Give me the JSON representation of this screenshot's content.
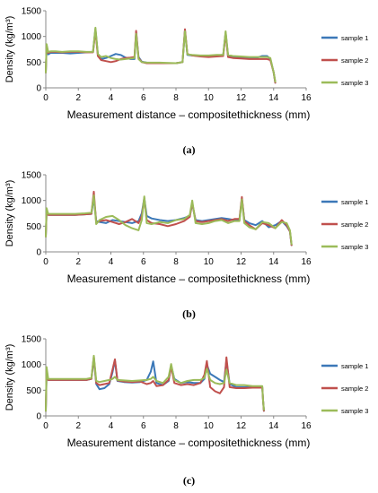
{
  "figure": {
    "captions": [
      "(a)",
      "(b)",
      "(c)"
    ]
  },
  "colors": {
    "sample1": "#3b78b8",
    "sample2": "#c0504d",
    "sample3": "#9bbb59",
    "axis": "#888888"
  },
  "chart_data": [
    {
      "type": "line",
      "title": "",
      "xlabel": "Measurement distance – compositethickness (mm)",
      "ylabel": "Density (kg/m³)",
      "xlim": [
        0,
        16
      ],
      "ylim": [
        0,
        1500
      ],
      "xticks": [
        "0",
        "2",
        "4",
        "6",
        "8",
        "10",
        "12",
        "14",
        "16"
      ],
      "yticks": [
        "0",
        "500",
        "1000",
        "1500"
      ],
      "legend_position": "right",
      "series": [
        {
          "name": "sample 1",
          "x": [
            0,
            0.05,
            0.15,
            0.3,
            0.6,
            1,
            1.5,
            2,
            2.5,
            2.9,
            3.05,
            3.2,
            3.4,
            3.7,
            4.0,
            4.3,
            4.6,
            4.9,
            5.2,
            5.45,
            5.55,
            5.7,
            5.9,
            6.2,
            7,
            8,
            8.4,
            8.55,
            8.7,
            9,
            9.5,
            10,
            10.5,
            10.9,
            11.05,
            11.2,
            11.5,
            12,
            12.5,
            13,
            13.3,
            13.6,
            13.8,
            14.0,
            14.1
          ],
          "y": [
            300,
            800,
            650,
            680,
            680,
            680,
            670,
            680,
            690,
            700,
            1150,
            650,
            560,
            580,
            620,
            660,
            640,
            590,
            560,
            560,
            1080,
            600,
            510,
            490,
            480,
            480,
            500,
            1120,
            640,
            630,
            620,
            620,
            630,
            640,
            1080,
            620,
            600,
            590,
            580,
            590,
            620,
            620,
            560,
            300,
            100
          ]
        },
        {
          "name": "sample 2",
          "x": [
            0,
            0.05,
            0.15,
            0.3,
            0.6,
            1,
            1.5,
            2,
            2.5,
            2.9,
            3.05,
            3.2,
            3.4,
            3.7,
            4.0,
            4.3,
            4.6,
            4.9,
            5.2,
            5.45,
            5.55,
            5.7,
            5.9,
            6.2,
            7,
            8,
            8.4,
            8.55,
            8.7,
            9,
            9.5,
            10,
            10.5,
            10.9,
            11.05,
            11.2,
            11.5,
            12,
            12.5,
            13,
            13.3,
            13.6,
            13.8,
            14.0,
            14.1
          ],
          "y": [
            300,
            820,
            680,
            700,
            700,
            690,
            700,
            700,
            690,
            690,
            1120,
            620,
            540,
            520,
            500,
            520,
            560,
            580,
            590,
            600,
            1110,
            580,
            500,
            480,
            480,
            480,
            500,
            1140,
            660,
            630,
            610,
            600,
            610,
            620,
            1060,
            600,
            580,
            570,
            560,
            560,
            560,
            560,
            540,
            300,
            100
          ]
        },
        {
          "name": "sample 3",
          "x": [
            0,
            0.05,
            0.15,
            0.3,
            0.6,
            1,
            1.5,
            2,
            2.5,
            2.9,
            3.05,
            3.2,
            3.4,
            3.7,
            4.0,
            4.3,
            4.6,
            4.9,
            5.2,
            5.45,
            5.55,
            5.7,
            5.9,
            6.2,
            7,
            8,
            8.4,
            8.55,
            8.7,
            9,
            9.5,
            10,
            10.5,
            10.9,
            11.05,
            11.2,
            11.5,
            12,
            12.5,
            13,
            13.3,
            13.6,
            13.8,
            14.0,
            14.1
          ],
          "y": [
            300,
            850,
            700,
            710,
            710,
            700,
            710,
            710,
            700,
            700,
            1170,
            660,
            600,
            620,
            580,
            560,
            550,
            560,
            570,
            580,
            1050,
            560,
            500,
            490,
            490,
            480,
            500,
            1100,
            650,
            640,
            630,
            630,
            640,
            640,
            1100,
            640,
            620,
            610,
            600,
            600,
            600,
            600,
            580,
            300,
            120
          ]
        }
      ]
    },
    {
      "type": "line",
      "title": "",
      "xlabel": "Measurement distance – compositethickness (mm)",
      "ylabel": "Density (kg/m³)",
      "xlim": [
        0,
        16
      ],
      "ylim": [
        0,
        1500
      ],
      "xticks": [
        "0",
        "2",
        "4",
        "6",
        "8",
        "10",
        "12",
        "14",
        "16"
      ],
      "yticks": [
        "0",
        "500",
        "1000",
        "1500"
      ],
      "legend_position": "right",
      "series": [
        {
          "name": "sample 1",
          "x": [
            0,
            0.05,
            0.15,
            0.3,
            0.7,
            1.2,
            1.8,
            2.4,
            2.8,
            2.95,
            3.1,
            3.3,
            3.7,
            4.1,
            4.5,
            4.9,
            5.3,
            5.7,
            5.9,
            6.05,
            6.2,
            6.5,
            7,
            7.5,
            8,
            8.5,
            8.85,
            9,
            9.2,
            9.6,
            10,
            10.4,
            10.8,
            11.2,
            11.6,
            11.9,
            12.05,
            12.2,
            12.5,
            12.9,
            13.3,
            13.7,
            14.1,
            14.5,
            14.8,
            15.0,
            15.1
          ],
          "y": [
            300,
            820,
            720,
            720,
            720,
            720,
            720,
            730,
            740,
            1050,
            600,
            580,
            560,
            620,
            600,
            580,
            560,
            600,
            750,
            1050,
            700,
            650,
            620,
            600,
            620,
            660,
            700,
            940,
            620,
            600,
            620,
            640,
            660,
            640,
            620,
            620,
            1040,
            620,
            560,
            520,
            600,
            480,
            520,
            600,
            500,
            400,
            130
          ]
        },
        {
          "name": "sample 2",
          "x": [
            0,
            0.05,
            0.15,
            0.3,
            0.7,
            1.2,
            1.8,
            2.4,
            2.8,
            2.95,
            3.1,
            3.3,
            3.7,
            4.1,
            4.5,
            4.9,
            5.3,
            5.7,
            5.9,
            6.05,
            6.2,
            6.5,
            7,
            7.5,
            8,
            8.5,
            8.85,
            9,
            9.2,
            9.6,
            10,
            10.4,
            10.8,
            11.2,
            11.6,
            11.9,
            12.05,
            12.2,
            12.5,
            12.9,
            13.3,
            13.7,
            14.1,
            14.5,
            14.8,
            15.0,
            15.1
          ],
          "y": [
            300,
            780,
            720,
            720,
            720,
            720,
            720,
            730,
            740,
            1170,
            560,
            600,
            620,
            580,
            540,
            580,
            640,
            560,
            700,
            1030,
            620,
            560,
            540,
            500,
            540,
            600,
            680,
            960,
            600,
            580,
            600,
            620,
            640,
            600,
            640,
            640,
            1070,
            600,
            520,
            440,
            560,
            520,
            460,
            620,
            520,
            400,
            130
          ]
        },
        {
          "name": "sample 3",
          "x": [
            0,
            0.05,
            0.15,
            0.3,
            0.7,
            1.2,
            1.8,
            2.4,
            2.8,
            2.95,
            3.1,
            3.3,
            3.7,
            4.1,
            4.5,
            4.9,
            5.3,
            5.7,
            5.9,
            6.05,
            6.2,
            6.5,
            7,
            7.5,
            8,
            8.5,
            8.85,
            9,
            9.2,
            9.6,
            10,
            10.4,
            10.8,
            11.2,
            11.6,
            11.9,
            12.05,
            12.2,
            12.5,
            12.9,
            13.3,
            13.7,
            14.1,
            14.5,
            14.8,
            15.0,
            15.1
          ],
          "y": [
            300,
            850,
            740,
            740,
            740,
            740,
            740,
            750,
            760,
            1100,
            540,
            620,
            680,
            700,
            620,
            520,
            460,
            420,
            620,
            1080,
            560,
            540,
            580,
            560,
            620,
            640,
            720,
            1000,
            560,
            540,
            560,
            600,
            620,
            560,
            600,
            600,
            1020,
            560,
            480,
            440,
            580,
            560,
            460,
            580,
            560,
            420,
            150
          ]
        }
      ]
    },
    {
      "type": "line",
      "title": "",
      "xlabel": "Measurement distance – compositethickness (mm)",
      "ylabel": "Density (kg/m³)",
      "xlim": [
        0,
        16
      ],
      "ylim": [
        0,
        1500
      ],
      "xticks": [
        "0",
        "2",
        "4",
        "6",
        "8",
        "10",
        "12",
        "14",
        "16"
      ],
      "yticks": [
        "0",
        "500",
        "1000",
        "1500"
      ],
      "legend_position": "right",
      "series": [
        {
          "name": "sample 1",
          "x": [
            0,
            0.05,
            0.15,
            0.3,
            0.7,
            1.3,
            2,
            2.5,
            2.8,
            2.95,
            3.1,
            3.3,
            3.6,
            3.9,
            4.1,
            4.25,
            4.4,
            4.8,
            5.3,
            5.8,
            6.2,
            6.45,
            6.6,
            6.8,
            7.2,
            7.55,
            7.7,
            7.9,
            8.3,
            8.7,
            9.1,
            9.5,
            9.75,
            9.9,
            10.1,
            10.4,
            10.7,
            10.95,
            11.1,
            11.3,
            11.7,
            12.2,
            12.7,
            13.1,
            13.3,
            13.35,
            13.4
          ],
          "y": [
            100,
            850,
            700,
            700,
            700,
            700,
            700,
            700,
            720,
            1130,
            620,
            520,
            540,
            620,
            850,
            1080,
            680,
            660,
            650,
            660,
            700,
            860,
            1060,
            640,
            600,
            680,
            980,
            720,
            640,
            660,
            640,
            640,
            720,
            1000,
            820,
            760,
            700,
            660,
            1080,
            620,
            560,
            560,
            560,
            560,
            560,
            300,
            100
          ]
        },
        {
          "name": "sample 2",
          "x": [
            0,
            0.05,
            0.15,
            0.3,
            0.7,
            1.3,
            2,
            2.5,
            2.8,
            2.95,
            3.1,
            3.3,
            3.6,
            3.9,
            4.1,
            4.25,
            4.4,
            4.8,
            5.3,
            5.8,
            6.2,
            6.45,
            6.6,
            6.8,
            7.2,
            7.55,
            7.7,
            7.9,
            8.3,
            8.7,
            9.1,
            9.5,
            9.75,
            9.9,
            10.1,
            10.4,
            10.7,
            10.95,
            11.1,
            11.3,
            11.7,
            12.2,
            12.7,
            13.1,
            13.3,
            13.35,
            13.4
          ],
          "y": [
            100,
            900,
            700,
            700,
            700,
            700,
            700,
            700,
            720,
            1150,
            640,
            600,
            620,
            640,
            900,
            1100,
            690,
            670,
            660,
            670,
            620,
            640,
            680,
            580,
            600,
            700,
            960,
            640,
            600,
            620,
            600,
            640,
            800,
            1070,
            560,
            480,
            440,
            560,
            1140,
            560,
            540,
            540,
            550,
            550,
            560,
            300,
            100
          ]
        },
        {
          "name": "sample 3",
          "x": [
            0,
            0.05,
            0.15,
            0.3,
            0.7,
            1.3,
            2,
            2.5,
            2.8,
            2.95,
            3.1,
            3.3,
            3.6,
            3.9,
            4.1,
            4.25,
            4.4,
            4.8,
            5.3,
            5.8,
            6.2,
            6.45,
            6.6,
            6.8,
            7.2,
            7.55,
            7.7,
            7.9,
            8.3,
            8.7,
            9.1,
            9.5,
            9.75,
            9.9,
            10.1,
            10.4,
            10.7,
            10.95,
            11.1,
            11.3,
            11.7,
            12.2,
            12.7,
            13.1,
            13.3,
            13.35,
            13.4
          ],
          "y": [
            100,
            950,
            720,
            720,
            720,
            720,
            720,
            720,
            740,
            1170,
            680,
            660,
            680,
            700,
            720,
            760,
            700,
            690,
            680,
            690,
            700,
            720,
            760,
            680,
            640,
            760,
            1010,
            700,
            640,
            680,
            700,
            700,
            740,
            920,
            700,
            640,
            620,
            640,
            900,
            640,
            600,
            600,
            580,
            580,
            580,
            300,
            120
          ]
        }
      ]
    }
  ]
}
